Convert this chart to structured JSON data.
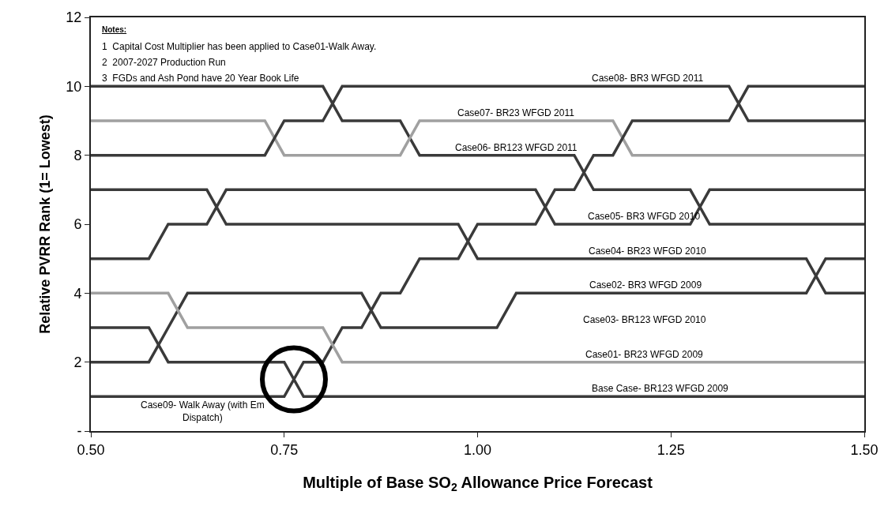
{
  "chart_data": {
    "type": "line",
    "xlabel": "Multiple of Base SO$_{2}$ Allowance Price Forecast",
    "ylabel": "Relative PVRR Rank (1= Lowest)",
    "x": [
      0.5,
      0.525,
      0.55,
      0.575,
      0.6,
      0.625,
      0.65,
      0.675,
      0.7,
      0.725,
      0.75,
      0.775,
      0.8,
      0.825,
      0.85,
      0.875,
      0.9,
      0.925,
      0.95,
      0.975,
      1.0,
      1.025,
      1.05,
      1.075,
      1.1,
      1.125,
      1.15,
      1.175,
      1.2,
      1.225,
      1.25,
      1.275,
      1.3,
      1.325,
      1.35,
      1.375,
      1.4,
      1.425,
      1.45,
      1.475,
      1.5
    ],
    "xlim": [
      0.5,
      1.5
    ],
    "xticks": [
      {
        "value": 0.5,
        "label": "0.50"
      },
      {
        "value": 0.75,
        "label": "0.75"
      },
      {
        "value": 1.0,
        "label": "1.00"
      },
      {
        "value": 1.25,
        "label": "1.25"
      },
      {
        "value": 1.5,
        "label": "1.50"
      }
    ],
    "ylim": [
      0,
      12
    ],
    "yticks": [
      {
        "value": 0,
        "label": "-"
      },
      2,
      4,
      6,
      8,
      10,
      12
    ],
    "marker": "none",
    "line_style": "solid",
    "series": [
      {
        "color": "#3a3a3a",
        "values": [
          10,
          10,
          10,
          10,
          10,
          10,
          10,
          10,
          10,
          10,
          10,
          10,
          10,
          9,
          9,
          9,
          9,
          8,
          8,
          8,
          8,
          8,
          8,
          8,
          8,
          8,
          7,
          7,
          7,
          7,
          7,
          7,
          6,
          6,
          6,
          6,
          6,
          6,
          6,
          6,
          6
        ]
      },
      {
        "color": "#a0a0a0",
        "values": [
          9,
          9,
          9,
          9,
          9,
          9,
          9,
          9,
          9,
          9,
          8,
          8,
          8,
          8,
          8,
          8,
          8,
          9,
          9,
          9,
          9,
          9,
          9,
          9,
          9,
          9,
          9,
          9,
          8,
          8,
          8,
          8,
          8,
          8,
          8,
          8,
          8,
          8,
          8,
          8,
          8
        ]
      },
      {
        "color": "#3a3a3a",
        "values": [
          8,
          8,
          8,
          8,
          8,
          8,
          8,
          8,
          8,
          8,
          9,
          9,
          9,
          10,
          10,
          10,
          10,
          10,
          10,
          10,
          10,
          10,
          10,
          10,
          10,
          10,
          10,
          10,
          10,
          10,
          10,
          10,
          10,
          10,
          9,
          9,
          9,
          9,
          9,
          9,
          9
        ]
      },
      {
        "color": "#3a3a3a",
        "values": [
          7,
          7,
          7,
          7,
          7,
          7,
          7,
          6,
          6,
          6,
          6,
          6,
          6,
          6,
          6,
          6,
          6,
          6,
          6,
          6,
          5,
          5,
          5,
          5,
          5,
          5,
          5,
          5,
          5,
          5,
          5,
          5,
          5,
          5,
          5,
          5,
          5,
          5,
          4,
          4,
          4
        ]
      },
      {
        "color": "#3a3a3a",
        "values": [
          5,
          5,
          5,
          5,
          6,
          6,
          6,
          7,
          7,
          7,
          7,
          7,
          7,
          7,
          7,
          7,
          7,
          7,
          7,
          7,
          7,
          7,
          7,
          7,
          6,
          6,
          6,
          6,
          6,
          6,
          6,
          6,
          7,
          7,
          7,
          7,
          7,
          7,
          7,
          7,
          7
        ]
      },
      {
        "color": "#3a3a3a",
        "values": [
          3,
          3,
          3,
          3,
          2,
          2,
          2,
          2,
          2,
          2,
          2,
          1,
          1,
          1,
          1,
          1,
          1,
          1,
          1,
          1,
          1,
          1,
          1,
          1,
          1,
          1,
          1,
          1,
          1,
          1,
          1,
          1,
          1,
          1,
          1,
          1,
          1,
          1,
          1,
          1,
          1
        ]
      },
      {
        "color": "#3a3a3a",
        "values": [
          2,
          2,
          2,
          2,
          3,
          4,
          4,
          4,
          4,
          4,
          4,
          4,
          4,
          4,
          4,
          3,
          3,
          3,
          3,
          3,
          3,
          3,
          4,
          4,
          4,
          4,
          4,
          4,
          4,
          4,
          4,
          4,
          4,
          4,
          4,
          4,
          4,
          4,
          5,
          5,
          5
        ]
      },
      {
        "color": "#3a3a3a",
        "values": [
          1,
          1,
          1,
          1,
          1,
          1,
          1,
          1,
          1,
          1,
          1,
          2,
          2,
          3,
          3,
          4,
          4,
          5,
          5,
          5,
          6,
          6,
          6,
          6,
          7,
          7,
          8,
          8,
          9,
          9,
          9,
          9,
          9,
          9,
          10,
          10,
          10,
          10,
          10,
          10,
          10
        ]
      },
      {
        "color": "#a0a0a0",
        "values": [
          4,
          4,
          4,
          4,
          4,
          3,
          3,
          3,
          3,
          3,
          3,
          3,
          3,
          2,
          2,
          2,
          2,
          2,
          2,
          2,
          2,
          2,
          2,
          2,
          2,
          2,
          2,
          2,
          2,
          2,
          2,
          2,
          2,
          2,
          2,
          2,
          2,
          2,
          2,
          2,
          2
        ]
      },
      {
        "type": "scatter",
        "marker": "circle",
        "color": "#000000",
        "x": [
          0.7625
        ],
        "values": [
          1.5
        ]
      }
    ],
    "annotations": [
      "Notes:",
      "1  Capital Cost Multiplier has been applied to Case01-Walk Away.",
      "2  2007-2027 Production Run",
      "3  FGDs and Ash Pond have 20 Year Book Life",
      {
        "text": "Case08- BR3 WFGD 2011",
        "x": 1.22,
        "y": 10
      },
      {
        "text": "Case07- BR23 WFGD 2011",
        "x": 1.05,
        "y": 9
      },
      {
        "text": "Case06- BR123 WFGD 2011",
        "x": 1.05,
        "y": 8
      },
      {
        "text": "Case05- BR3 WFGD 2010",
        "x": 1.215,
        "y": 6
      },
      {
        "text": "Case04- BR23 WFGD 2010",
        "x": 1.22,
        "y": 5
      },
      {
        "text": "Case02- BR3 WFGD 2009",
        "x": 1.217,
        "y": 4
      },
      "Case03- BR123 WFGD 2010",
      {
        "text": "Case01- BR23 WFGD 2009",
        "x": 1.216,
        "y": 2
      },
      {
        "text": "Base Case- BR123 WFGD 2009",
        "x": 1.236,
        "y": 1
      },
      {
        "text": "Case09- Walk Away (with Em\nDispatch)",
        "x": 0.645,
        "y": 1
      }
    ]
  }
}
